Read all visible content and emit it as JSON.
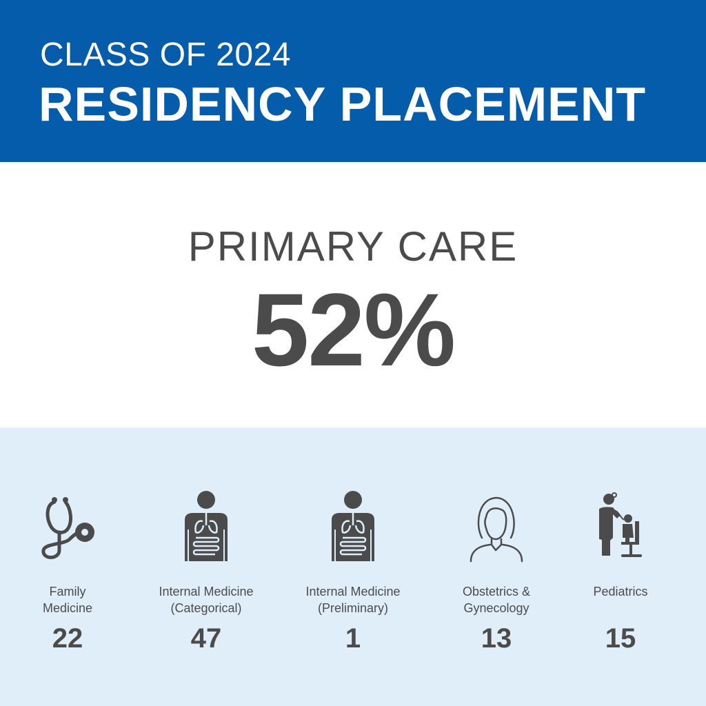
{
  "header": {
    "line1": "CLASS OF 2024",
    "line2": "RESIDENCY PLACEMENT",
    "background": "#045CAA"
  },
  "hero": {
    "label": "PRIMARY CARE",
    "percent": "52%"
  },
  "specialties": [
    {
      "name_line1": "Family",
      "name_line2": "Medicine",
      "count": "22",
      "icon": "stethoscope-icon"
    },
    {
      "name_line1": "Internal Medicine",
      "name_line2": "(Categorical)",
      "count": "47",
      "icon": "internal-organs-icon"
    },
    {
      "name_line1": "Internal Medicine",
      "name_line2": "(Preliminary)",
      "count": "1",
      "icon": "internal-organs-icon"
    },
    {
      "name_line1": "Obstetrics &",
      "name_line2": "Gynecology",
      "count": "13",
      "icon": "woman-icon"
    },
    {
      "name_line1": "Pediatrics",
      "name_line2": "",
      "count": "15",
      "icon": "pediatrician-icon"
    }
  ],
  "colors": {
    "text": "#4c4b4c",
    "panel": "#DFEEF9"
  }
}
